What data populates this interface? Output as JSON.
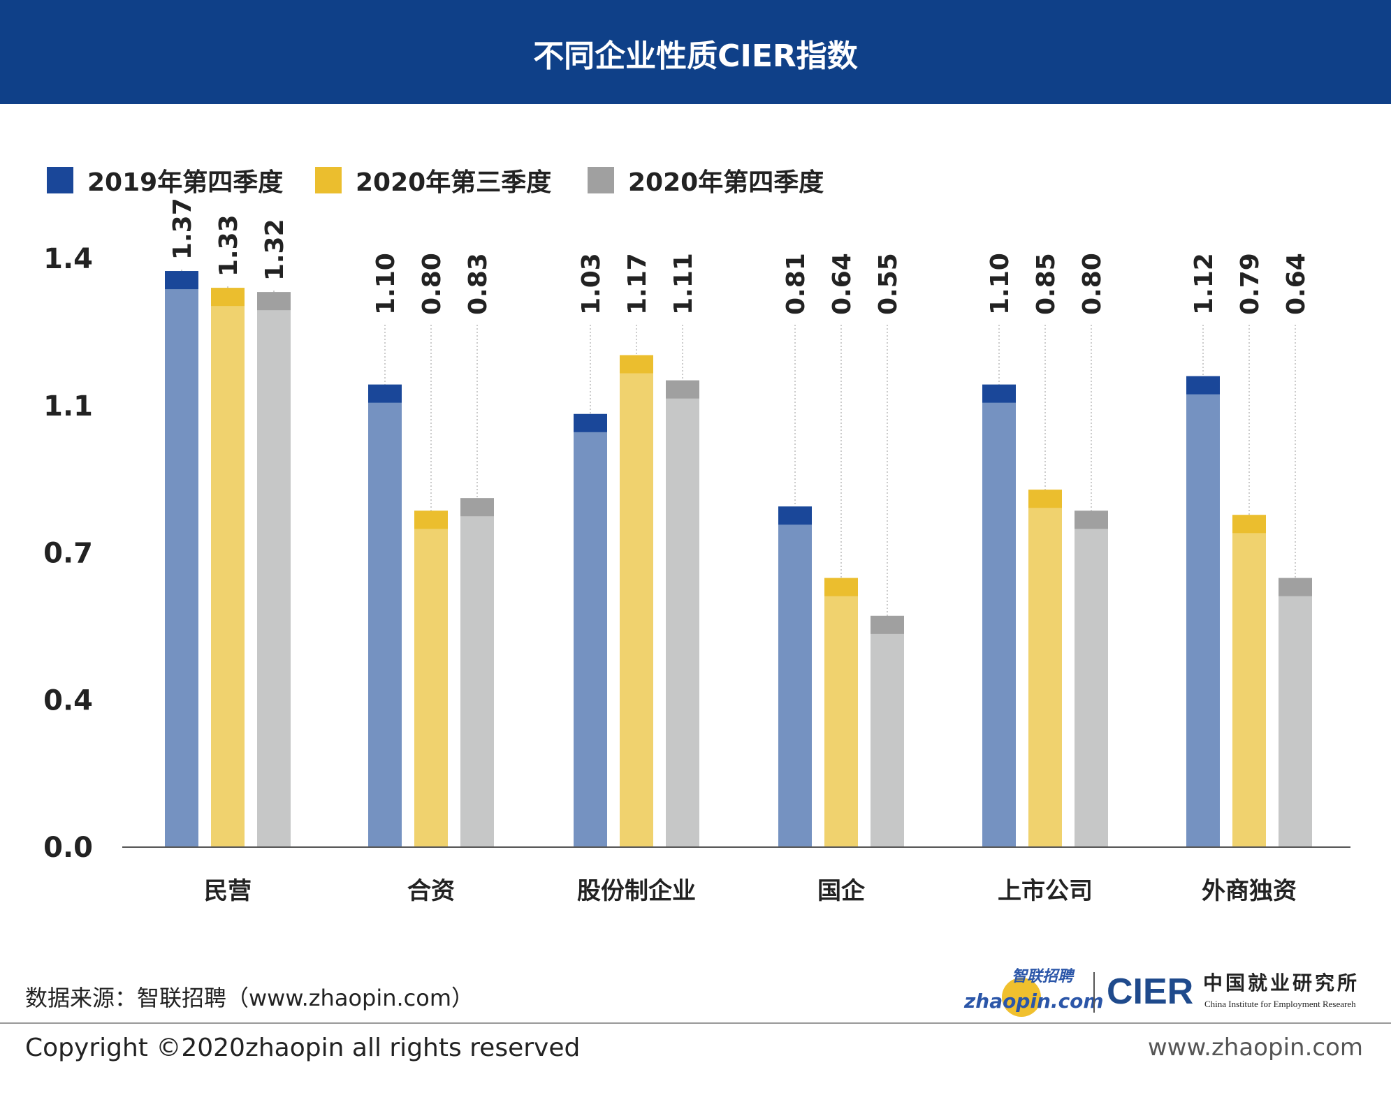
{
  "header": {
    "title": "不同企业性质CIER指数"
  },
  "chart_data": {
    "type": "bar",
    "title": "不同企业性质CIER指数",
    "categories": [
      "民营",
      "合资",
      "股份制企业",
      "国企",
      "上市公司",
      "外商独资"
    ],
    "series": [
      {
        "name": "2019年第四季度",
        "color": "#1a4799",
        "body_color": "#7592c1",
        "values": [
          1.37,
          1.1,
          1.03,
          0.81,
          1.1,
          1.12
        ]
      },
      {
        "name": "2020年第三季度",
        "color": "#ebbe2e",
        "body_color": "#f0d26e",
        "values": [
          1.33,
          0.8,
          1.17,
          0.64,
          0.85,
          0.79
        ]
      },
      {
        "name": "2020年第四季度",
        "color": "#a0a0a0",
        "body_color": "#c6c7c7",
        "values": [
          1.32,
          0.83,
          1.11,
          0.55,
          0.8,
          0.64
        ]
      }
    ],
    "data_labels": [
      [
        "1.37",
        "1.10",
        "1.03",
        "0.81",
        "1.10",
        "1.12"
      ],
      [
        "1.33",
        "0.80",
        "1.17",
        "0.64",
        "0.85",
        "0.79"
      ],
      [
        "1.32",
        "0.83",
        "1.11",
        "0.55",
        "0.80",
        "0.64"
      ]
    ],
    "yticks": [
      {
        "value": 0.0,
        "label": "0.0"
      },
      {
        "value": 0.35,
        "label": "0.4"
      },
      {
        "value": 0.7,
        "label": "0.7"
      },
      {
        "value": 1.05,
        "label": "1.1"
      },
      {
        "value": 1.4,
        "label": "1.4"
      }
    ],
    "ylim": [
      0,
      1.4
    ],
    "xlabel": "",
    "ylabel": "",
    "grid": false,
    "legend": "top-left"
  },
  "footer": {
    "source": "数据来源：智联招聘（www.zhaopin.com）",
    "copyright": "Copyright ©2020zhaopin all rights reserved",
    "website": "www.zhaopin.com",
    "logo_zhaopin_cn": "智联招聘",
    "logo_zhaopin_en": "zhaopin.com",
    "logo_cier": "CIER",
    "logo_cier_cn": "中国就业研究所",
    "logo_cier_en": "China Institute for Employment Researeh"
  }
}
